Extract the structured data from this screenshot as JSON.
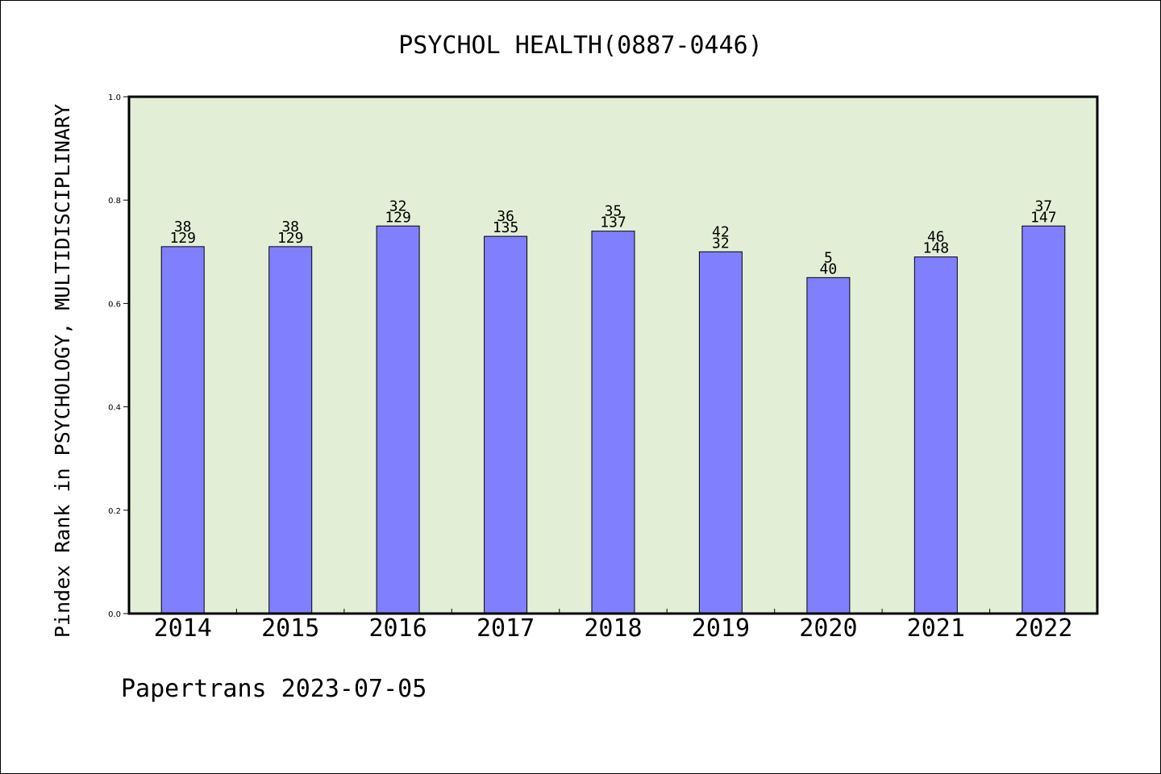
{
  "chart_data": {
    "type": "bar",
    "title": "PSYCHOL HEALTH(0887-0446)",
    "ylabel": "Pindex Rank in PSYCHOLOGY, MULTIDISCIPLINARY",
    "xlabel": "",
    "ylim": [
      0,
      1.0
    ],
    "yticks": [
      "0.0",
      "0.2",
      "0.4",
      "0.6",
      "0.8",
      "1.0"
    ],
    "categories": [
      "2014",
      "2015",
      "2016",
      "2017",
      "2018",
      "2019",
      "2020",
      "2021",
      "2022"
    ],
    "values": [
      0.71,
      0.71,
      0.75,
      0.73,
      0.74,
      0.7,
      0.65,
      0.69,
      0.75
    ],
    "labels_top": [
      "38",
      "38",
      "32",
      "36",
      "35",
      "42",
      "5",
      "46",
      "37"
    ],
    "labels_bottom": [
      "129",
      "129",
      "129",
      "135",
      "137",
      "32",
      "40",
      "148",
      "147"
    ],
    "grid": false,
    "colors": {
      "bar": "#8080ff",
      "plot_background": "#e2efd6",
      "axes": "#000000"
    }
  },
  "footer": "Papertrans 2023-07-05"
}
